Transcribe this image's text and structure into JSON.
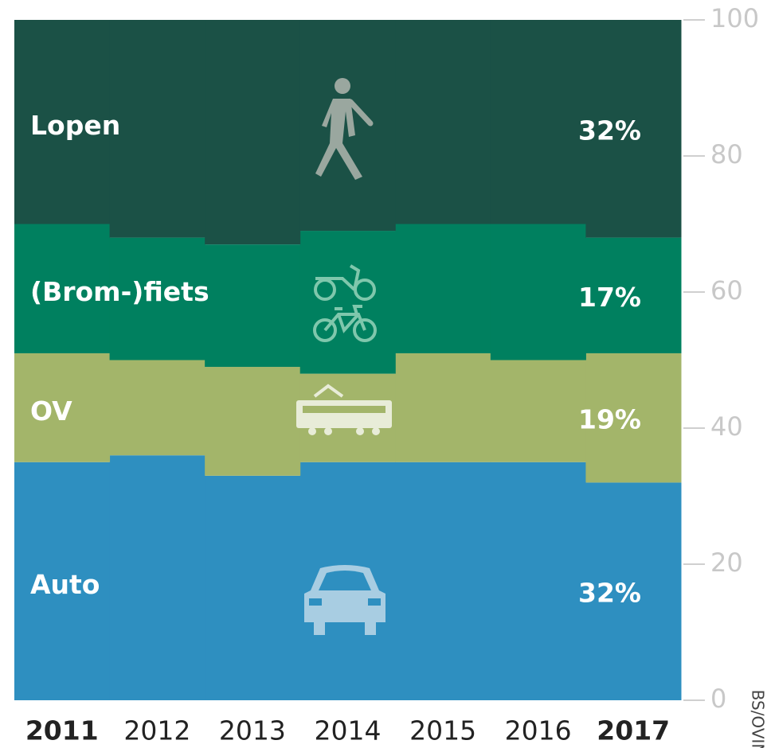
{
  "chart_data": {
    "type": "stacked_step_area",
    "categories": [
      "2011",
      "2012",
      "2013",
      "2014",
      "2015",
      "2016",
      "2017"
    ],
    "series": [
      {
        "name": "Auto",
        "color": "#2e8fc0",
        "values": [
          35,
          36,
          33,
          35,
          35,
          35,
          32
        ],
        "value_labels": [
          null,
          null,
          null,
          null,
          null,
          null,
          "32%"
        ]
      },
      {
        "name": "OV",
        "color": "#a3b56a",
        "values": [
          16,
          14,
          16,
          13,
          16,
          15,
          19
        ],
        "value_labels": [
          null,
          null,
          null,
          null,
          null,
          null,
          "19%"
        ]
      },
      {
        "name": "(Brom-)fiets",
        "color": "#00805f",
        "values": [
          19,
          18,
          18,
          21,
          19,
          20,
          17
        ],
        "value_labels": [
          null,
          null,
          null,
          null,
          null,
          null,
          "17%"
        ]
      },
      {
        "name": "Lopen",
        "color": "#1b5146",
        "values": [
          30,
          32,
          33,
          31,
          30,
          30,
          32
        ],
        "value_labels": [
          null,
          null,
          null,
          null,
          null,
          null,
          "32%"
        ]
      }
    ],
    "ylim": [
      0,
      100
    ],
    "yticks": [
      0,
      20,
      40,
      60,
      80,
      100
    ],
    "source": "BS/OVIN"
  }
}
